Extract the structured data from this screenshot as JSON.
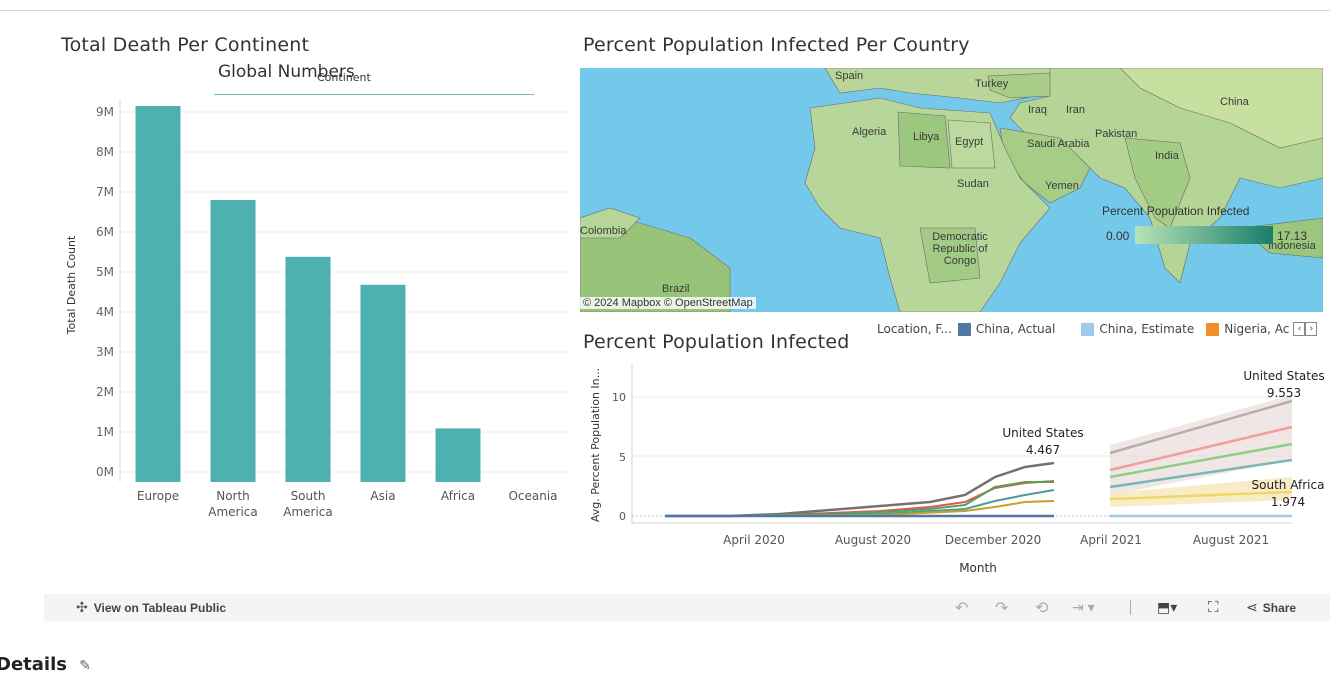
{
  "dashboard": {
    "left_title": "Total Death Per Continent",
    "global_numbers": "Global Numbers",
    "continent_label": "Continent",
    "map_title": "Percent Population Infected Per Country",
    "line_title": "Percent Population Infected",
    "map_legend_title": "Percent Population Infected",
    "map_legend_min": "0.00",
    "map_legend_max": "17.13",
    "map_attribution": "© 2024 Mapbox © OpenStreetMap",
    "map_labels": [
      "Spain",
      "Turkey",
      "Algeria",
      "Libya",
      "Egypt",
      "Iraq",
      "Iran",
      "Saudi Arabia",
      "Pakistan",
      "India",
      "China",
      "Sudan",
      "Yemen",
      "Democratic Republic of Congo",
      "Brazil",
      "Colombia",
      "Indonesia"
    ],
    "line_legend": {
      "label": "Location, F...",
      "items": [
        {
          "name": "China, Actual",
          "color": "#4e79a7"
        },
        {
          "name": "China, Estimate",
          "color": "#a0cbe8"
        },
        {
          "name": "Nigeria, Ac",
          "color": "#f28e2b"
        }
      ]
    },
    "line_annotations": {
      "us_actual_label": "United States",
      "us_actual_value": "4.467",
      "us_est_label": "United States",
      "us_est_value": "9.553",
      "sa_label": "South Africa",
      "sa_value": "1.974"
    },
    "line_ylabel": "Avg. Percent Population In...",
    "line_xlabel": "Month",
    "line_xticks": [
      "April 2020",
      "August 2020",
      "December 2020",
      "April 2021",
      "August 2021"
    ],
    "line_yticks": [
      "0",
      "5",
      "10"
    ]
  },
  "toolbar": {
    "view_label": "View on Tableau Public",
    "share_label": "Share"
  },
  "details": {
    "label": "Details"
  },
  "chart_data": {
    "type": "bar",
    "title": "Total Death Per Continent",
    "xlabel": "Continent",
    "ylabel": "Total Death Count",
    "categories": [
      "Europe",
      "North America",
      "South America",
      "Asia",
      "Africa",
      "Oceania"
    ],
    "values": [
      9150000,
      6800000,
      5380000,
      4680000,
      1090000,
      0
    ],
    "ylim": [
      0,
      9000000
    ],
    "yticks": [
      "0M",
      "1M",
      "2M",
      "3M",
      "4M",
      "5M",
      "6M",
      "7M",
      "8M",
      "9M"
    ],
    "color": "#4fb0b1"
  }
}
